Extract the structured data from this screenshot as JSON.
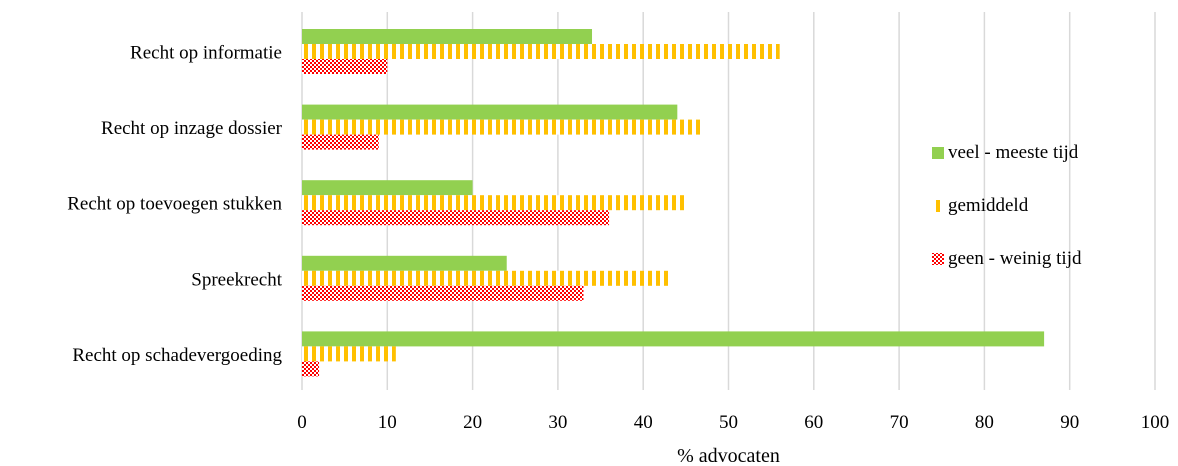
{
  "chart_data": {
    "type": "bar",
    "orientation": "horizontal",
    "categories": [
      "Recht op informatie",
      "Recht op inzage dossier",
      "Recht op toevoegen stukken",
      "Spreekrecht",
      "Recht op schadevergoeding"
    ],
    "series": [
      {
        "name": "veel - meeste tijd",
        "values": [
          34,
          44,
          20,
          24,
          87
        ],
        "color": "#92d050",
        "pattern": "solid"
      },
      {
        "name": "gemiddeld",
        "values": [
          56,
          47,
          45,
          43,
          11
        ],
        "color": "#ffc000",
        "pattern": "vertical-stripes"
      },
      {
        "name": "geen - weinig tijd",
        "values": [
          10,
          9,
          36,
          33,
          2
        ],
        "color": "#ff0000",
        "pattern": "dotted"
      }
    ],
    "xlabel": "% advocaten",
    "ylabel": "",
    "xlim": [
      0,
      100
    ],
    "xticks": [
      0,
      10,
      20,
      30,
      40,
      50,
      60,
      70,
      80,
      90,
      100
    ],
    "grid": "vertical",
    "legend_position": "right"
  }
}
